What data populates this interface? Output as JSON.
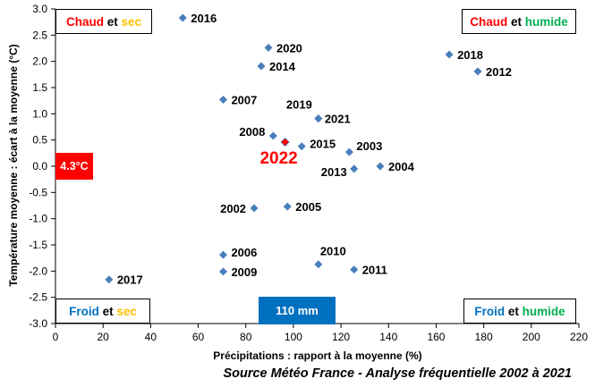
{
  "chart_data": {
    "type": "scatter",
    "title": "",
    "xlabel": "Précipitations : rapport à la moyenne (%)",
    "ylabel": "Température moyenne : écart à la moyenne (°C)",
    "xlim": [
      0,
      220
    ],
    "ylim": [
      -3.0,
      3.0
    ],
    "x_ticks": [
      "0",
      "20",
      "40",
      "60",
      "80",
      "100",
      "120",
      "140",
      "160",
      "180",
      "200",
      "220"
    ],
    "y_ticks": [
      "3.0",
      "2.5",
      "2.0",
      "1.5",
      "1.0",
      "0.5",
      "0.0",
      "-0.5",
      "-1.0",
      "-1.5",
      "-2.0",
      "-2.5",
      "-3.0"
    ],
    "grid": false,
    "points": [
      {
        "label": "2002",
        "x": 83.5,
        "y": -0.8
      },
      {
        "label": "2003",
        "x": 123.5,
        "y": 0.27
      },
      {
        "label": "2004",
        "x": 136.5,
        "y": 0.0
      },
      {
        "label": "2005",
        "x": 97.5,
        "y": -0.77
      },
      {
        "label": "2006",
        "x": 70.5,
        "y": -1.69
      },
      {
        "label": "2007",
        "x": 70.5,
        "y": 1.27
      },
      {
        "label": "2008",
        "x": 91.5,
        "y": 0.58
      },
      {
        "label": "2009",
        "x": 70.5,
        "y": -2.01
      },
      {
        "label": "2010",
        "x": 110.5,
        "y": -1.87
      },
      {
        "label": "2011",
        "x": 125.5,
        "y": -1.97
      },
      {
        "label": "2012",
        "x": 177.5,
        "y": 1.81
      },
      {
        "label": "2013",
        "x": 125.5,
        "y": -0.05
      },
      {
        "label": "2014",
        "x": 86.5,
        "y": 1.91
      },
      {
        "label": "2015",
        "x": 103.5,
        "y": 0.38
      },
      {
        "label": "2016",
        "x": 53.5,
        "y": 2.83
      },
      {
        "label": "2017",
        "x": 22.5,
        "y": -2.16
      },
      {
        "label": "2018",
        "x": 165.5,
        "y": 2.13
      },
      {
        "label": "2019",
        "x": 110.5,
        "y": 0.91
      },
      {
        "label": "2020",
        "x": 89.5,
        "y": 2.26
      },
      {
        "label": "2021",
        "x": 110.5,
        "y": 0.91
      },
      {
        "label": "2022",
        "x": 96.5,
        "y": 0.46,
        "highlight": true
      }
    ],
    "highlight_label": "2022",
    "colors": {
      "marker": "#4a7ebb",
      "highlight": "#ff0000",
      "label": "#000000",
      "highlight_label": "#ff0000"
    }
  },
  "quadrants": {
    "top_left": {
      "word1": "Chaud",
      "conj": "et",
      "word2": "sec",
      "color1": "#ff0000",
      "color2": "#ffc000"
    },
    "top_right": {
      "word1": "Chaud",
      "conj": "et",
      "word2": "humide",
      "color1": "#ff0000",
      "color2": "#00b050"
    },
    "bottom_left": {
      "word1": "Froid",
      "conj": "et",
      "word2": "sec",
      "color1": "#0070c0",
      "color2": "#ffc000"
    },
    "bottom_right": {
      "word1": "Froid",
      "conj": "et",
      "word2": "humide",
      "color1": "#0070c0",
      "color2": "#00b050"
    }
  },
  "markers": {
    "temperature": {
      "label": "4.3°C",
      "color": "#ff0000"
    },
    "precipitation": {
      "label": "110 mm",
      "color": "#0070c0"
    }
  },
  "source": "Source Météo France - Analyse fréquentielle 2002 à 2021"
}
